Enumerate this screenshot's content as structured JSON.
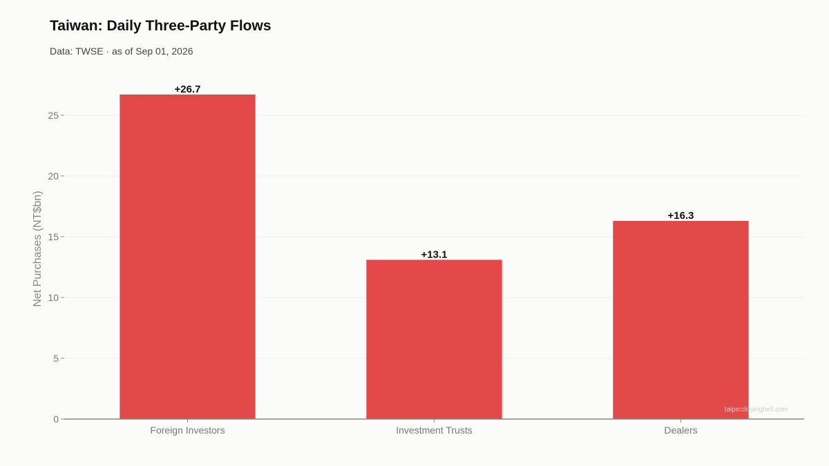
{
  "header": {
    "title": "Taiwan: Daily Three-Party Flows",
    "subtitle": "Data: TWSE · as of Sep 01, 2026"
  },
  "watermark": "taipeiclosingbell.com",
  "colors": {
    "bar": "#e24a4a",
    "background": "#fbfbf9",
    "grid": "#eeeeee",
    "axis": "#888888"
  },
  "chart_data": {
    "type": "bar",
    "title": "Taiwan: Daily Three-Party Flows",
    "subtitle": "Data: TWSE · as of Sep 01, 2026",
    "xlabel": "",
    "ylabel": "Net Purchases (NT$bn)",
    "categories": [
      "Foreign Investors",
      "Investment Trusts",
      "Dealers"
    ],
    "values": [
      26.7,
      13.1,
      16.3
    ],
    "data_labels": [
      "+26.7",
      "+13.1",
      "+16.3"
    ],
    "ylim": [
      0,
      28
    ],
    "yticks": [
      0,
      5,
      10,
      15,
      20,
      25
    ],
    "grid": true,
    "legend": "none"
  }
}
